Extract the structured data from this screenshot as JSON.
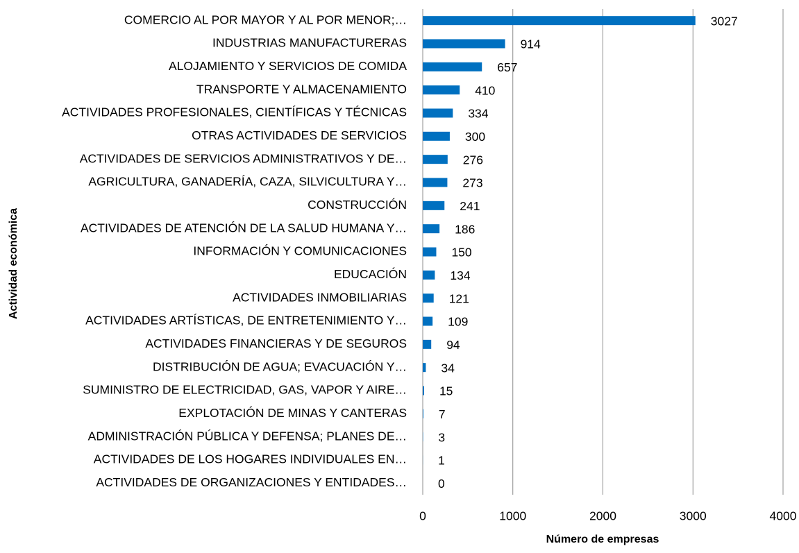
{
  "chart_data": {
    "type": "bar",
    "orientation": "horizontal",
    "x_label": "Número de empresas",
    "y_label": "Actividad económica",
    "categories": [
      "COMERCIO AL POR MAYOR Y AL POR MENOR;…",
      "INDUSTRIAS MANUFACTURERAS",
      "ALOJAMIENTO Y SERVICIOS DE COMIDA",
      "TRANSPORTE Y ALMACENAMIENTO",
      "ACTIVIDADES PROFESIONALES, CIENTÍFICAS Y TÉCNICAS",
      "OTRAS ACTIVIDADES DE SERVICIOS",
      "ACTIVIDADES DE SERVICIOS ADMINISTRATIVOS Y DE…",
      "AGRICULTURA, GANADERÍA, CAZA, SILVICULTURA Y…",
      "CONSTRUCCIÓN",
      "ACTIVIDADES DE ATENCIÓN DE LA SALUD HUMANA Y…",
      "INFORMACIÓN Y COMUNICACIONES",
      "EDUCACIÓN",
      "ACTIVIDADES INMOBILIARIAS",
      "ACTIVIDADES ARTÍSTICAS, DE ENTRETENIMIENTO Y…",
      "ACTIVIDADES FINANCIERAS Y DE SEGUROS",
      "DISTRIBUCIÓN DE AGUA; EVACUACIÓN Y…",
      "SUMINISTRO DE ELECTRICIDAD, GAS, VAPOR Y AIRE…",
      "EXPLOTACIÓN DE MINAS Y CANTERAS",
      "ADMINISTRACIÓN PÚBLICA Y DEFENSA; PLANES DE…",
      "ACTIVIDADES DE LOS HOGARES INDIVIDUALES EN…",
      "ACTIVIDADES DE ORGANIZACIONES Y ENTIDADES…"
    ],
    "values": [
      3027,
      914,
      657,
      410,
      334,
      300,
      276,
      273,
      241,
      186,
      150,
      134,
      121,
      109,
      94,
      34,
      15,
      7,
      3,
      1,
      0
    ],
    "color": "#0070c0",
    "xlim": [
      0,
      4000
    ],
    "xticks": [
      0,
      1000,
      2000,
      3000,
      4000
    ],
    "grid": true
  }
}
